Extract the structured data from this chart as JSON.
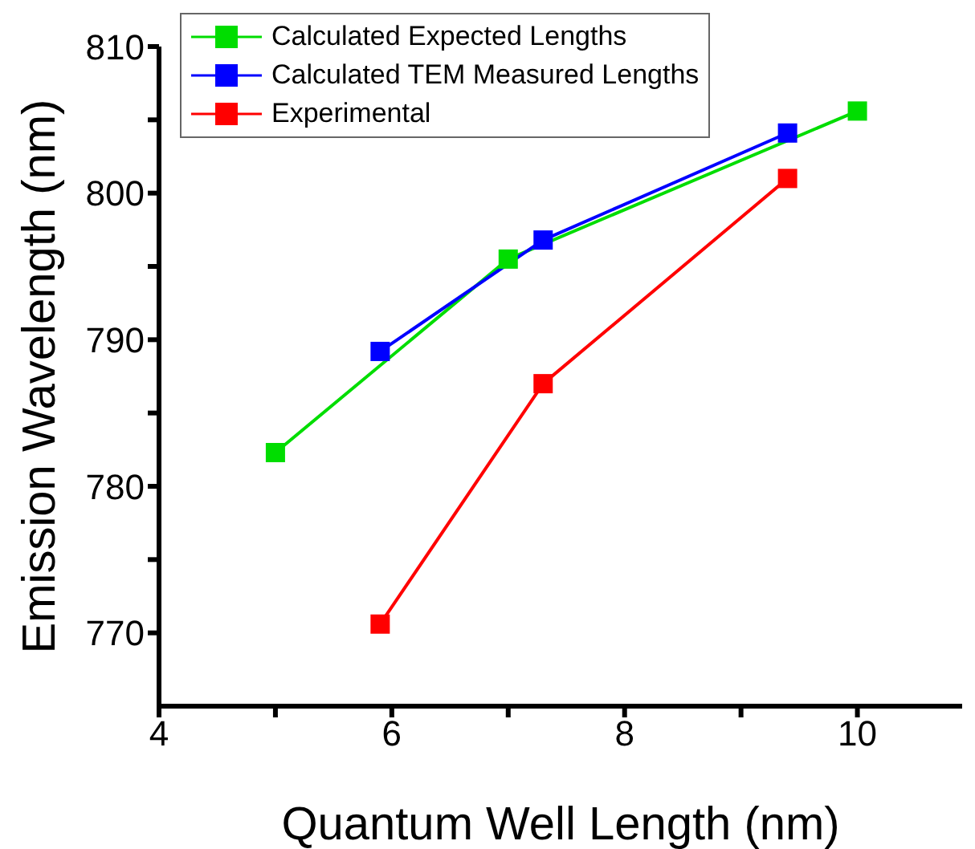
{
  "chart_data": {
    "type": "line",
    "xlabel": "Quantum Well Length (nm)",
    "ylabel": "Emission Wavelength (nm)",
    "xlim": [
      4,
      10.9
    ],
    "xticks": [
      4,
      {
        "value": 5,
        "label": null
      },
      6,
      {
        "value": 7,
        "label": null
      },
      8,
      {
        "value": 9,
        "label": null
      },
      10
    ],
    "ylim": [
      765,
      810
    ],
    "yticks": [
      770,
      {
        "value": 775,
        "label": null
      },
      780,
      {
        "value": 785,
        "label": null
      },
      790,
      {
        "value": 795,
        "label": null
      },
      800,
      {
        "value": 805,
        "label": null
      },
      810
    ],
    "grid": false,
    "legend": "top left",
    "marker": "square",
    "line_style": "solid",
    "series": [
      {
        "name": "Calculated Expected Lengths",
        "color": "#00dd00",
        "x": [
          5,
          7,
          10
        ],
        "values": [
          782.3,
          795.5,
          805.6
        ]
      },
      {
        "name": "Calculated TEM Measured Lengths",
        "color": "#0000ff",
        "x": [
          5.9,
          7.3,
          9.4
        ],
        "values": [
          789.2,
          796.8,
          804.1
        ]
      },
      {
        "name": "Experimental",
        "color": "#ff0000",
        "x": [
          5.9,
          7.3,
          9.4
        ],
        "values": [
          770.6,
          787.0,
          801.0
        ]
      }
    ]
  }
}
